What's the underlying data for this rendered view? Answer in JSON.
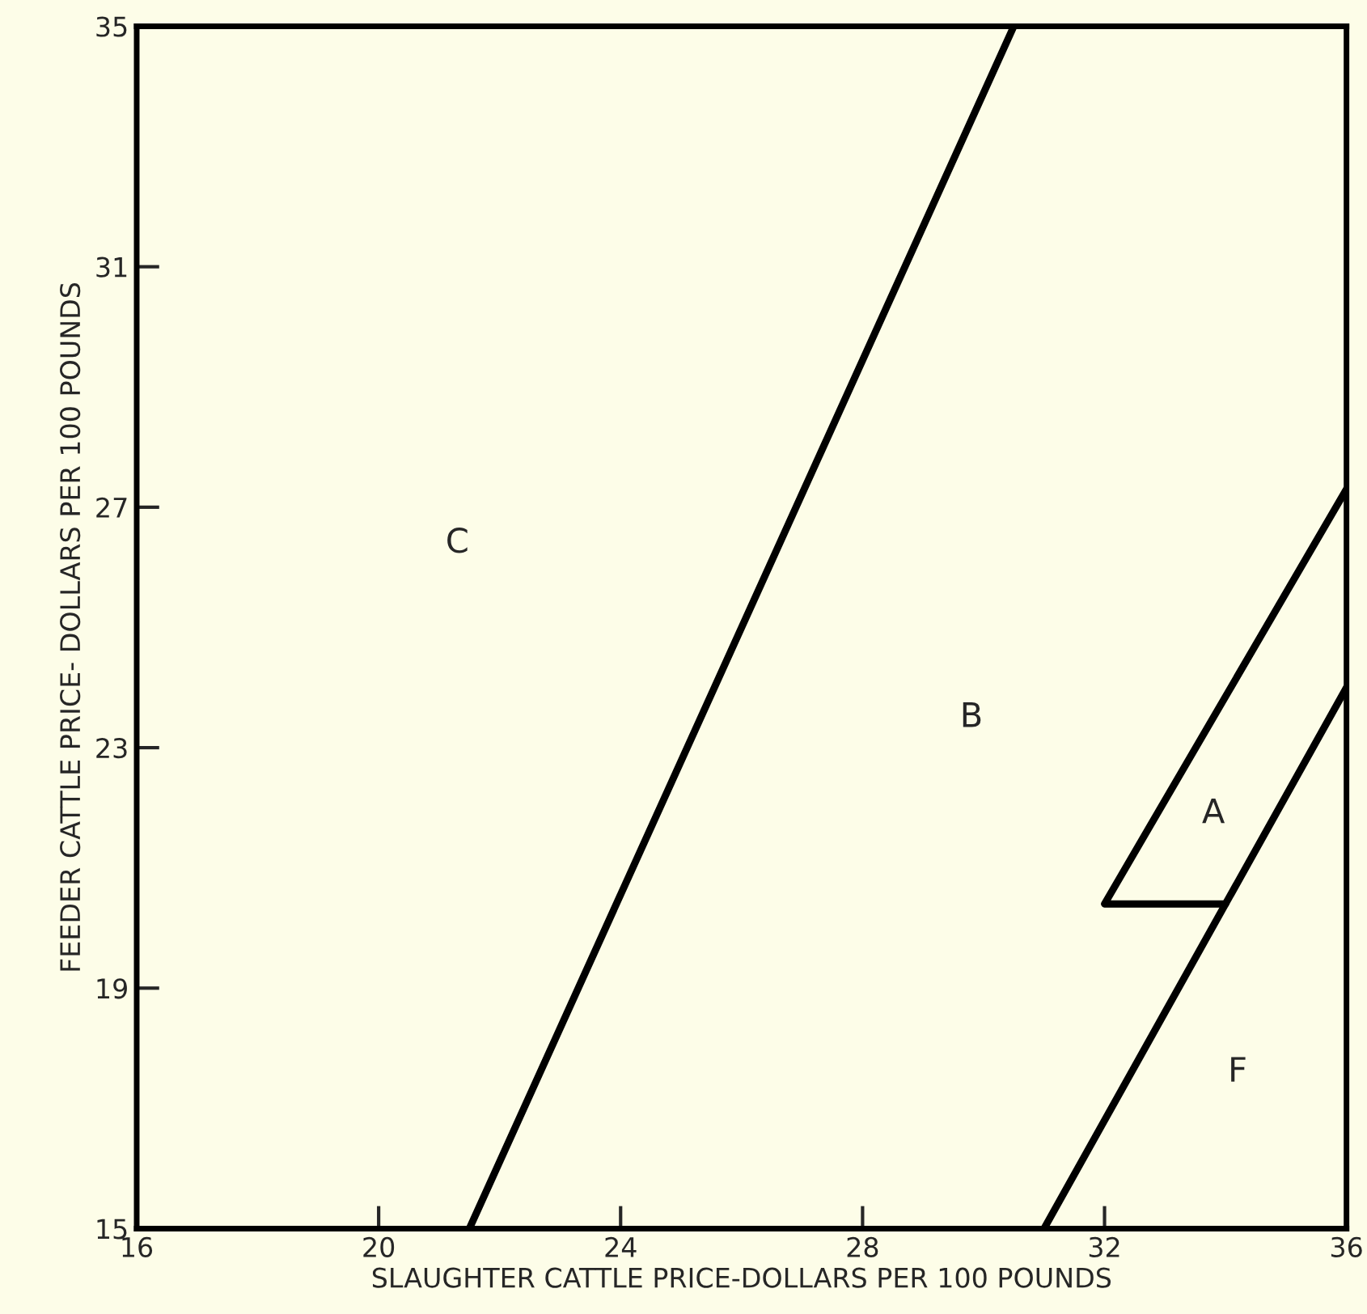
{
  "chart_data": {
    "type": "line",
    "xlabel": "SLAUGHTER CATTLE PRICE-DOLLARS PER 100 POUNDS",
    "ylabel": "FEEDER CATTLE PRICE- DOLLARS PER 100 POUNDS",
    "series": [
      {
        "x": [
          21.5,
          30.5
        ],
        "values": [
          15,
          35
        ],
        "color": "#000000"
      },
      {
        "x": [
          31,
          36
        ],
        "values": [
          15,
          24
        ],
        "color": "#000000"
      },
      {
        "x": [
          36,
          32,
          34
        ],
        "values": [
          27.3,
          20.4,
          20.4
        ],
        "color": "#000000"
      }
    ],
    "annotations": [
      "C",
      "B",
      "A",
      "F"
    ],
    "xlim": [
      16,
      36
    ],
    "ylim": [
      15,
      35
    ],
    "xticks": [
      16,
      20,
      24,
      28,
      32,
      36
    ],
    "yticks": [
      15,
      19,
      23,
      27,
      31,
      35
    ],
    "grid": false,
    "legend": false,
    "marker": "none",
    "line_style": "solid"
  }
}
